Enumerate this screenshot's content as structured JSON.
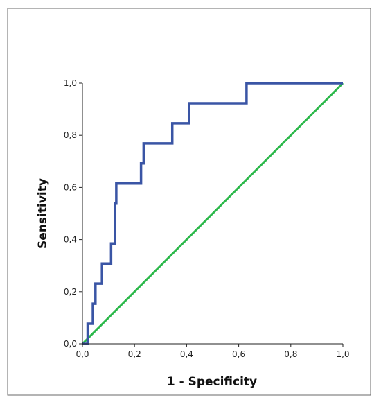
{
  "chart_data": {
    "type": "line",
    "title": "",
    "xlabel": "1 - Specificity",
    "ylabel": "Sensitivity",
    "xlim": [
      0.0,
      1.0
    ],
    "ylim": [
      0.0,
      1.0
    ],
    "x_ticks": [
      "0,0",
      "0,2",
      "0,4",
      "0,6",
      "0,8",
      "1,0"
    ],
    "y_ticks": [
      "0,0",
      "0,2",
      "0,4",
      "0,6",
      "0,8",
      "1,0"
    ],
    "grid": false,
    "legend": "none",
    "series": [
      {
        "color": "#3a55a5",
        "step": true,
        "points": [
          [
            0.0,
            0.0
          ],
          [
            0.02,
            0.0
          ],
          [
            0.02,
            0.077
          ],
          [
            0.04,
            0.077
          ],
          [
            0.04,
            0.154
          ],
          [
            0.05,
            0.154
          ],
          [
            0.05,
            0.231
          ],
          [
            0.075,
            0.231
          ],
          [
            0.075,
            0.308
          ],
          [
            0.11,
            0.308
          ],
          [
            0.11,
            0.385
          ],
          [
            0.125,
            0.385
          ],
          [
            0.125,
            0.538
          ],
          [
            0.13,
            0.538
          ],
          [
            0.13,
            0.615
          ],
          [
            0.225,
            0.615
          ],
          [
            0.225,
            0.692
          ],
          [
            0.235,
            0.692
          ],
          [
            0.235,
            0.769
          ],
          [
            0.345,
            0.769
          ],
          [
            0.345,
            0.846
          ],
          [
            0.41,
            0.846
          ],
          [
            0.41,
            0.923
          ],
          [
            0.63,
            0.923
          ],
          [
            0.63,
            1.0
          ],
          [
            1.0,
            1.0
          ]
        ]
      },
      {
        "color": "#2bb84a",
        "step": false,
        "points": [
          [
            0.0,
            0.0
          ],
          [
            1.0,
            1.0
          ]
        ]
      }
    ]
  }
}
